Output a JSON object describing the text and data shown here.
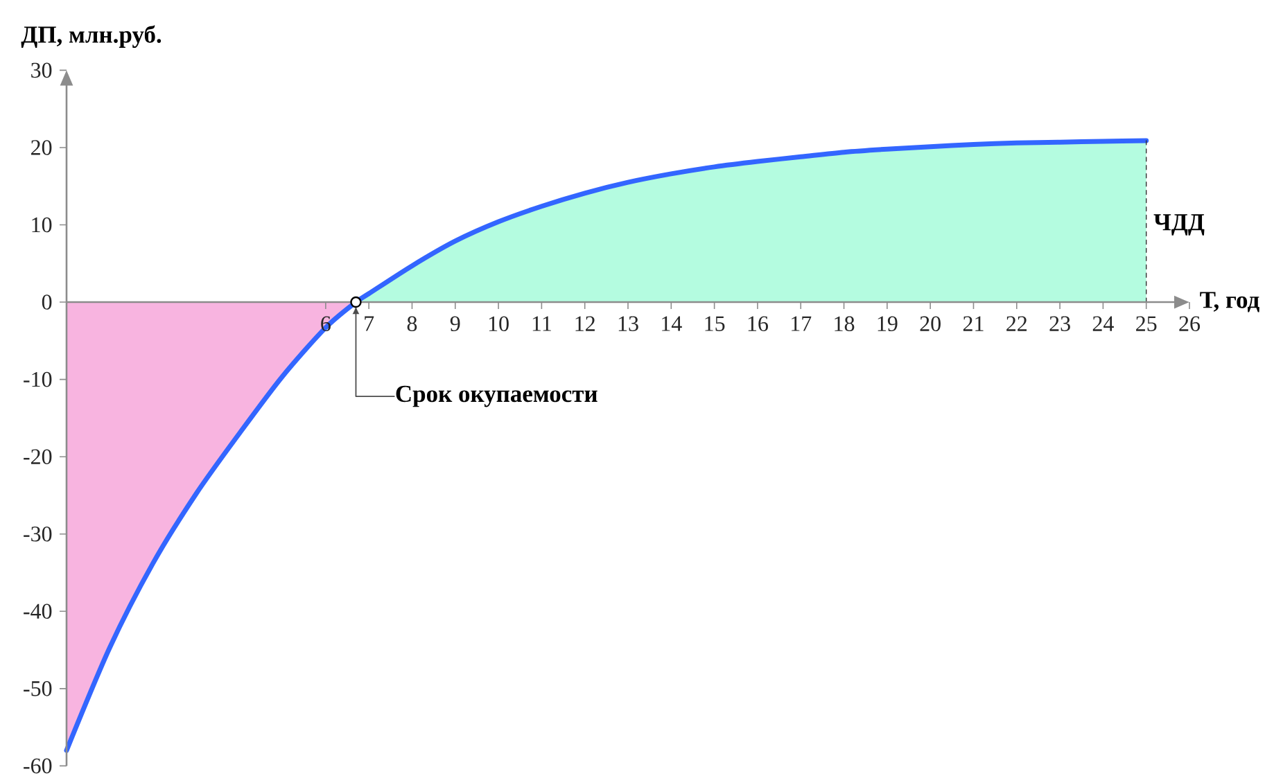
{
  "chart_data": {
    "type": "line",
    "xlabel": "Т, год",
    "ylabel": "ДП, млн.руб.",
    "xlim": [
      0,
      26
    ],
    "ylim": [
      -60,
      30
    ],
    "xticks": [
      6,
      7,
      8,
      9,
      10,
      11,
      12,
      13,
      14,
      15,
      16,
      17,
      18,
      19,
      20,
      21,
      22,
      23,
      24,
      25,
      26
    ],
    "yticks": [
      -60,
      -50,
      -40,
      -30,
      -20,
      -10,
      0,
      10,
      20,
      30
    ],
    "series": [
      {
        "type": "area",
        "color": "#f8b4e0",
        "x": [
          0,
          1,
          2,
          3,
          4,
          5,
          6,
          6.7
        ],
        "values": [
          -58.0,
          -44.7,
          -33.8,
          -24.8,
          -17.0,
          -9.6,
          -3.3,
          0
        ]
      },
      {
        "type": "area",
        "color": "#b4fce0",
        "x": [
          6.7,
          7,
          8,
          9,
          10,
          11,
          12,
          13,
          14,
          15,
          16,
          17,
          18,
          19,
          20,
          21,
          22,
          23,
          24,
          25
        ],
        "values": [
          0,
          1.1,
          4.7,
          7.9,
          10.4,
          12.4,
          14.1,
          15.5,
          16.6,
          17.5,
          18.2,
          18.8,
          19.4,
          19.8,
          20.1,
          20.4,
          20.6,
          20.7,
          20.8,
          20.9
        ]
      },
      {
        "color": "#3366ff",
        "x": [
          0,
          1,
          2,
          3,
          4,
          5,
          6,
          6.7,
          7,
          8,
          9,
          10,
          11,
          12,
          13,
          14,
          15,
          16,
          17,
          18,
          19,
          20,
          21,
          22,
          23,
          24,
          25
        ],
        "values": [
          -58.0,
          -44.7,
          -33.8,
          -24.8,
          -17.0,
          -9.6,
          -3.3,
          0,
          1.1,
          4.7,
          7.9,
          10.4,
          12.4,
          14.1,
          15.5,
          16.6,
          17.5,
          18.2,
          18.8,
          19.4,
          19.8,
          20.1,
          20.4,
          20.6,
          20.7,
          20.8,
          20.9
        ]
      },
      {
        "type": "line",
        "color": "#333333",
        "line_style": "dashed",
        "x": [
          25,
          25
        ],
        "values": [
          0,
          20.9
        ]
      }
    ],
    "annotations": [
      {
        "text": "Срок окупаемости",
        "x": 6.7,
        "y": 0
      },
      {
        "text": "ЧДД",
        "x": 25,
        "y": 10
      }
    ]
  }
}
